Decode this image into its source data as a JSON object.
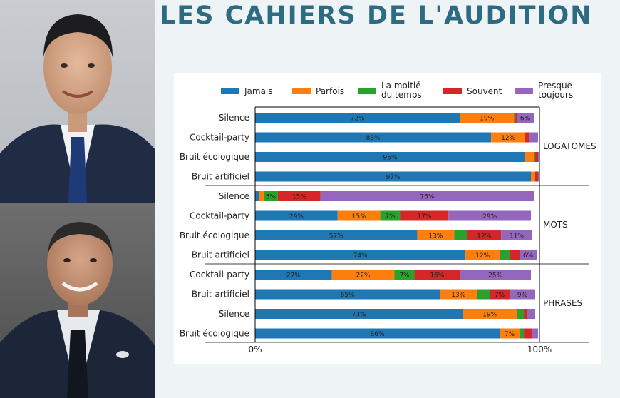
{
  "header": {
    "title": "LES CAHIERS DE L'AUDITION"
  },
  "photos": [
    {
      "name": "portrait-top",
      "jacket": "#1f2c44",
      "tie": "#1e3b78",
      "shirt": "#f2f2f2"
    },
    {
      "name": "portrait-bottom",
      "jacket": "#1c2638",
      "tie": "#12161f",
      "shirt": "#e6e9ee"
    }
  ],
  "chart_data": {
    "type": "bar",
    "orientation": "horizontal-stacked",
    "legend_position": "top",
    "series": [
      {
        "name": "Jamais",
        "color": "#1f77b4"
      },
      {
        "name": "Parfois",
        "color": "#ff7f0e"
      },
      {
        "name": "La moitié du temps",
        "label_lines": [
          "La moitié",
          "du temps"
        ],
        "color": "#2ca02c"
      },
      {
        "name": "Souvent",
        "color": "#d62728"
      },
      {
        "name": "Presque toujours",
        "label_lines": [
          "Presque",
          "toujours"
        ],
        "color": "#9467bd"
      }
    ],
    "groups": [
      {
        "label": "LOGATOMES",
        "rows": [
          {
            "category": "Silence",
            "values": [
              72,
              19,
              0.5,
              0.5,
              6
            ],
            "labels": [
              "72%",
              "19%",
              "",
              "",
              "6%"
            ]
          },
          {
            "category": "Cocktail-party",
            "values": [
              83,
              12,
              0,
              1.5,
              3
            ],
            "labels": [
              "83%",
              "12%",
              "",
              "",
              ""
            ]
          },
          {
            "category": "Bruit écologique",
            "values": [
              95,
              3,
              0.5,
              1,
              0.5
            ],
            "labels": [
              "95%",
              "",
              "",
              "",
              ""
            ]
          },
          {
            "category": "Bruit artificiel",
            "values": [
              97,
              1.5,
              0,
              1,
              0.5
            ],
            "labels": [
              "97%",
              "",
              "",
              "",
              ""
            ]
          }
        ]
      },
      {
        "label": "MOTS",
        "rows": [
          {
            "category": "Silence",
            "values": [
              1.5,
              1.5,
              5,
              15,
              75
            ],
            "labels": [
              "",
              "",
              "5%",
              "15%",
              "75%"
            ]
          },
          {
            "category": "Cocktail-party",
            "values": [
              29,
              15,
              7,
              17,
              29
            ],
            "labels": [
              "29%",
              "15%",
              "7%",
              "17%",
              "29%"
            ]
          },
          {
            "category": "Bruit écologique",
            "values": [
              57,
              13,
              4.5,
              12,
              11
            ],
            "labels": [
              "57%",
              "13%",
              "",
              "12%",
              "11%"
            ]
          },
          {
            "category": "Bruit artificiel",
            "values": [
              74,
              12,
              3.5,
              3.5,
              6
            ],
            "labels": [
              "74%",
              "12%",
              "",
              "",
              "6%"
            ]
          }
        ]
      },
      {
        "label": "PHRASES",
        "rows": [
          {
            "category": "Cocktail-party",
            "values": [
              27,
              22,
              7,
              16,
              25
            ],
            "labels": [
              "27%",
              "22%",
              "7%",
              "16%",
              "25%"
            ]
          },
          {
            "category": "Bruit artificiel",
            "values": [
              65,
              13,
              4.5,
              7,
              9
            ],
            "labels": [
              "65%",
              "13%",
              "",
              "7%",
              "9%"
            ]
          },
          {
            "category": "Silence",
            "values": [
              73,
              19,
              2.5,
              1,
              3
            ],
            "labels": [
              "73%",
              "19%",
              "",
              "",
              ""
            ]
          },
          {
            "category": "Bruit écologique",
            "values": [
              86,
              7,
              1.5,
              3,
              2
            ],
            "labels": [
              "86%",
              "7%",
              "",
              "",
              ""
            ]
          }
        ]
      }
    ],
    "x_ticks": [
      "0%",
      "100%"
    ],
    "xlim": [
      0,
      100
    ],
    "grid": false
  }
}
